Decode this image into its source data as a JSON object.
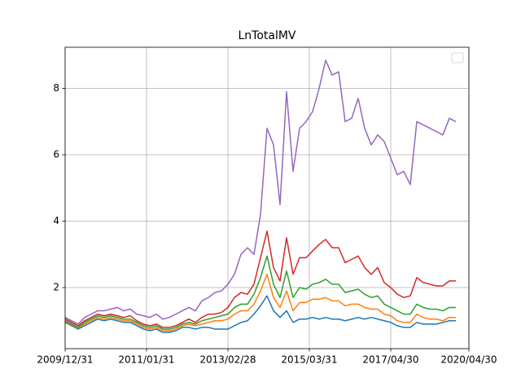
{
  "chart_data": {
    "type": "line",
    "title": "LnTotalMV",
    "x": [
      0,
      2,
      4,
      6,
      8,
      10,
      12,
      14,
      16,
      18,
      20,
      22,
      24,
      26,
      28,
      30,
      32,
      34,
      36,
      38,
      40,
      42,
      44,
      46,
      48,
      50,
      52,
      54,
      56,
      58,
      60,
      62,
      64,
      66,
      68,
      70,
      72,
      74,
      76,
      78,
      80,
      82,
      84,
      86,
      88,
      90,
      92,
      94,
      96,
      98,
      100,
      102,
      104,
      106,
      108,
      110,
      112,
      114,
      116,
      118,
      120
    ],
    "xlim": [
      0,
      124
    ],
    "xticks": [
      {
        "value": 0,
        "label": "2009/12/31"
      },
      {
        "value": 25,
        "label": "2011/01/31"
      },
      {
        "value": 50,
        "label": "2013/02/28"
      },
      {
        "value": 75,
        "label": "2015/03/31"
      },
      {
        "value": 100,
        "label": "2017/04/30"
      },
      {
        "value": 124,
        "label": "2020/04/30"
      }
    ],
    "ylim": [
      0.16,
      9.24
    ],
    "yticks": [
      2,
      4,
      6,
      8
    ],
    "grid": true,
    "legend": "upper right",
    "series": [
      {
        "color": "#1f77b4",
        "values": [
          0.95,
          0.85,
          0.75,
          0.85,
          0.95,
          1.05,
          1.0,
          1.05,
          1.0,
          0.95,
          0.95,
          0.85,
          0.75,
          0.7,
          0.75,
          0.65,
          0.65,
          0.7,
          0.8,
          0.8,
          0.75,
          0.8,
          0.8,
          0.75,
          0.75,
          0.75,
          0.85,
          0.95,
          1.0,
          1.2,
          1.45,
          1.75,
          1.3,
          1.1,
          1.3,
          0.95,
          1.05,
          1.05,
          1.1,
          1.05,
          1.1,
          1.05,
          1.05,
          1.0,
          1.05,
          1.1,
          1.05,
          1.1,
          1.05,
          1.0,
          0.95,
          0.85,
          0.8,
          0.8,
          0.95,
          0.9,
          0.9,
          0.9,
          0.95,
          1.0,
          1.0
        ]
      },
      {
        "color": "#ff7f0e",
        "values": [
          0.97,
          0.88,
          0.78,
          0.9,
          1.0,
          1.1,
          1.05,
          1.1,
          1.05,
          1.0,
          1.0,
          0.9,
          0.8,
          0.75,
          0.8,
          0.7,
          0.7,
          0.75,
          0.85,
          0.9,
          0.85,
          0.9,
          0.95,
          1.0,
          1.0,
          1.05,
          1.2,
          1.3,
          1.3,
          1.5,
          1.9,
          2.4,
          1.7,
          1.4,
          1.9,
          1.3,
          1.55,
          1.55,
          1.65,
          1.65,
          1.7,
          1.6,
          1.6,
          1.45,
          1.5,
          1.5,
          1.4,
          1.35,
          1.35,
          1.2,
          1.15,
          1.0,
          0.95,
          0.95,
          1.2,
          1.1,
          1.05,
          1.05,
          1.0,
          1.1,
          1.1
        ]
      },
      {
        "color": "#2ca02c",
        "values": [
          1.0,
          0.9,
          0.8,
          0.95,
          1.05,
          1.15,
          1.1,
          1.15,
          1.1,
          1.05,
          1.05,
          0.95,
          0.85,
          0.8,
          0.85,
          0.75,
          0.75,
          0.8,
          0.9,
          0.95,
          0.9,
          1.0,
          1.05,
          1.1,
          1.15,
          1.2,
          1.4,
          1.5,
          1.5,
          1.8,
          2.3,
          2.95,
          2.1,
          1.7,
          2.5,
          1.7,
          2.0,
          1.95,
          2.1,
          2.15,
          2.25,
          2.1,
          2.1,
          1.85,
          1.9,
          1.95,
          1.8,
          1.7,
          1.75,
          1.5,
          1.4,
          1.3,
          1.2,
          1.2,
          1.5,
          1.4,
          1.35,
          1.35,
          1.3,
          1.4,
          1.4
        ]
      },
      {
        "color": "#d62728",
        "values": [
          1.05,
          0.95,
          0.85,
          1.0,
          1.1,
          1.2,
          1.15,
          1.2,
          1.15,
          1.1,
          1.15,
          1.0,
          0.9,
          0.85,
          0.9,
          0.8,
          0.8,
          0.85,
          0.95,
          1.05,
          0.95,
          1.1,
          1.2,
          1.2,
          1.25,
          1.4,
          1.7,
          1.85,
          1.8,
          2.1,
          2.9,
          3.7,
          2.6,
          2.2,
          3.5,
          2.4,
          2.9,
          2.9,
          3.1,
          3.3,
          3.45,
          3.2,
          3.2,
          2.75,
          2.85,
          2.95,
          2.6,
          2.4,
          2.6,
          2.15,
          2.0,
          1.8,
          1.7,
          1.75,
          2.3,
          2.15,
          2.1,
          2.05,
          2.05,
          2.2,
          2.2
        ]
      },
      {
        "color": "#9467bd",
        "values": [
          1.1,
          1.0,
          0.9,
          1.1,
          1.2,
          1.3,
          1.3,
          1.35,
          1.4,
          1.3,
          1.35,
          1.2,
          1.15,
          1.1,
          1.2,
          1.05,
          1.1,
          1.2,
          1.3,
          1.4,
          1.3,
          1.6,
          1.7,
          1.85,
          1.9,
          2.1,
          2.4,
          3.0,
          3.2,
          3.0,
          4.2,
          6.8,
          6.3,
          4.5,
          7.9,
          5.5,
          6.8,
          7.0,
          7.3,
          8.0,
          8.85,
          8.4,
          8.5,
          7.0,
          7.1,
          7.7,
          6.8,
          6.3,
          6.6,
          6.4,
          5.9,
          5.4,
          5.5,
          5.1,
          7.0,
          6.9,
          6.8,
          6.7,
          6.6,
          7.1,
          7.0
        ]
      }
    ]
  }
}
